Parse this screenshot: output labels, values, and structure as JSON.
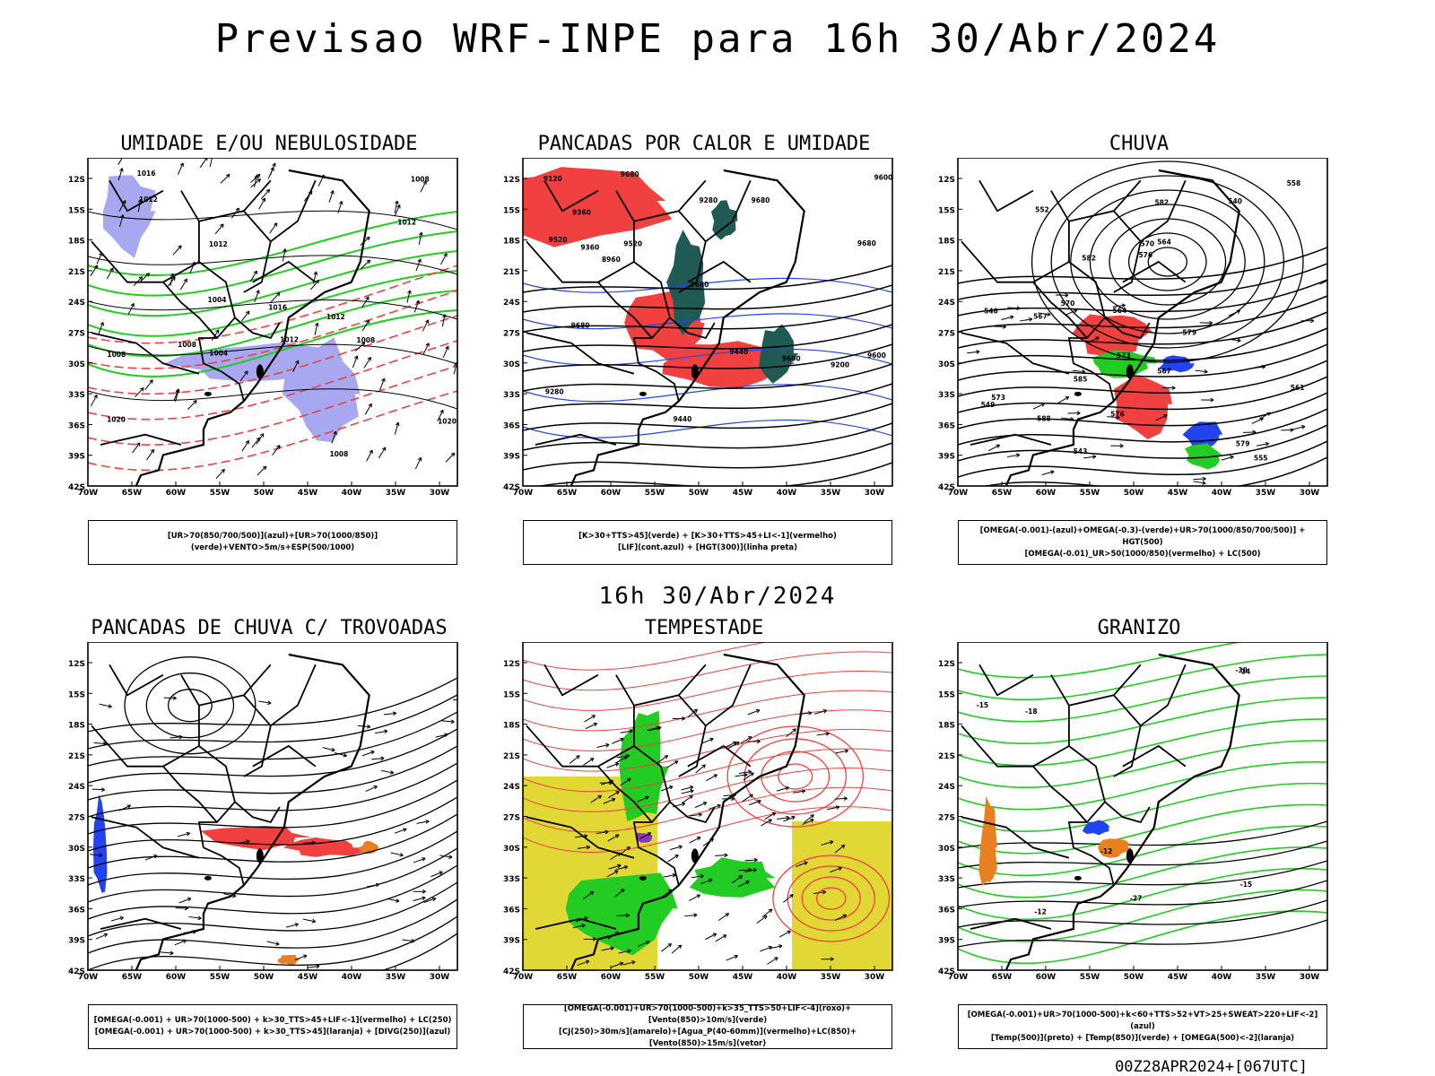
{
  "title": "Previsao WRF-INPE  para 16h 30/Abr/2024",
  "mid_title": "16h 30/Abr/2024",
  "footer": "00Z28APR2024+[067UTC]",
  "colors": {
    "red": "#f04040",
    "green": "#22cc22",
    "blue": "#2244ee",
    "lavender": "#a8a8f0",
    "teal": "#1f5a55",
    "yellow": "#e2d835",
    "orange": "#e88020",
    "purple": "#9030c0"
  },
  "axes": {
    "lat_labels": [
      "12S",
      "15S",
      "18S",
      "21S",
      "24S",
      "27S",
      "30S",
      "33S",
      "36S",
      "39S",
      "42S"
    ],
    "lon_labels": [
      "70W",
      "65W",
      "60W",
      "55W",
      "50W",
      "45W",
      "40W",
      "35W",
      "30W"
    ]
  },
  "panels": [
    {
      "title": "UMIDADE E/OU NEBULOSIDADE",
      "legend": [
        "[UR>70(850/700/500)](azul)+[UR>70(1000/850)](verde)+VENTO>5m/s+ESP(500/1000)"
      ],
      "contour_labels": [
        "1012",
        "1012",
        "1008",
        "1012",
        "1016",
        "1016",
        "1008",
        "1012",
        "1004",
        "1008",
        "1012",
        "1020",
        "1020",
        "1008",
        "1008",
        "1004"
      ]
    },
    {
      "title": "PANCADAS POR CALOR E UMIDADE",
      "legend": [
        "[K>30+TTS>45](verde) + [K>30+TTS>45+LI<-1](vermelho)",
        "[LIF](cont.azul) + [HGT(300)](linha preta)"
      ],
      "contour_labels": [
        "9680",
        "9680",
        "9680",
        "9680",
        "9600",
        "9520",
        "9680",
        "9600",
        "9440",
        "9360",
        "9280",
        "9200",
        "9120",
        "8960",
        "9600",
        "9520",
        "9440",
        "9360",
        "9280"
      ]
    },
    {
      "title": "CHUVA",
      "legend": [
        "[OMEGA(-0.001)-(azul)+OMEGA(-0.3)-(verde)+UR>70(1000/850/700/500)] + HGT(500)",
        "[OMEGA(-0.01)_UR>50(1000/850)(vermelho) + LC(500)"
      ],
      "contour_labels": [
        "588",
        "585",
        "582",
        "579",
        "576",
        "573",
        "570",
        "567",
        "564",
        "561",
        "558",
        "555",
        "552",
        "549",
        "546",
        "543",
        "540",
        "582",
        "579",
        "576",
        "573",
        "570",
        "567",
        "564"
      ]
    },
    {
      "title": "PANCADAS DE CHUVA C/ TROVOADAS",
      "legend": [
        "[OMEGA(-0.001) + UR>70(1000-500) + k>30_TTS>45+LIF<-1](vermelho) + LC(250)",
        "[OMEGA(-0.001) + UR>70(1000-500) + k>30_TTS>45](laranja) + [DIVG(250)](azul)"
      ]
    },
    {
      "title": "TEMPESTADE",
      "legend": [
        "[OMEGA(-0.001)+UR>70(1000-500)+k>35_TTS>50+LIF<-4](roxo)+[Vento(850)>10m/s](verde)",
        "[CJ(250)>30m/s](amarelo)+[Agua_P(40-60mm)](vermelho)+LC(850)+[Vento(850)>15m/s](vetor)"
      ]
    },
    {
      "title": "GRANIZO",
      "legend": [
        "[OMEGA(-0.001)+UR>70(1000-500)+k<60+TTS>52+VT>25+SWEAT>220+LIF<-2](azul)",
        "[Temp(500)](preto) + [Temp(850)](verde) + [OMEGA(500)<-2](laranja)"
      ],
      "contour_labels": [
        "-15",
        "-12",
        "-12",
        "-15",
        "-18",
        "-24",
        "-27",
        "-30"
      ]
    }
  ]
}
